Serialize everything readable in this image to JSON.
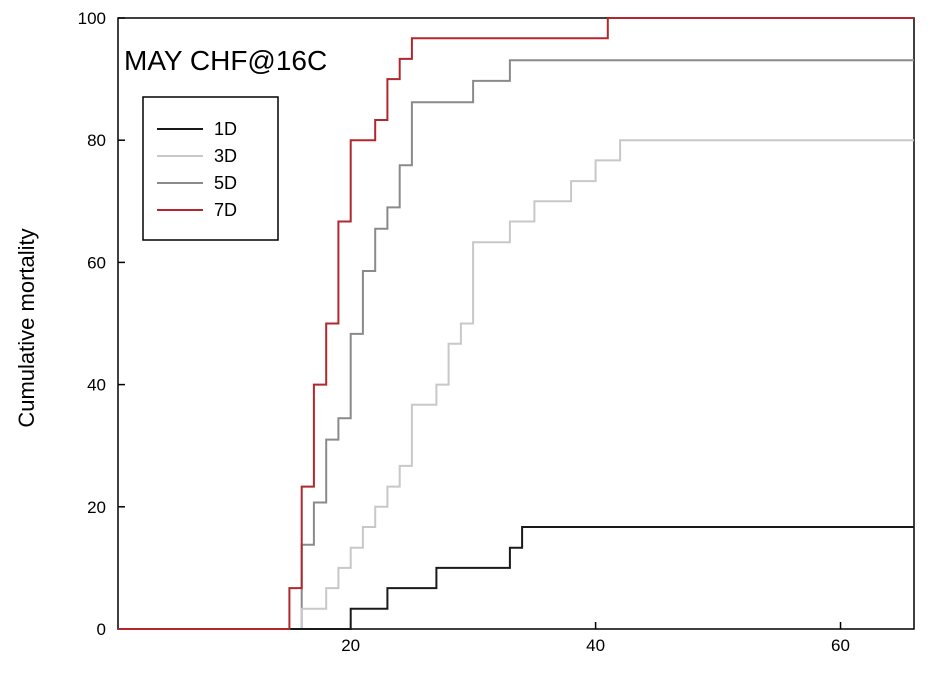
{
  "chart_data": {
    "type": "line",
    "step": true,
    "title": "MAY CHF@16C",
    "xlabel": "",
    "ylabel": "Cumulative mortality",
    "xlim": [
      1,
      66
    ],
    "ylim": [
      0,
      100
    ],
    "xticks": [
      20,
      40,
      60
    ],
    "yticks": [
      0,
      20,
      40,
      60,
      80,
      100
    ],
    "grid": false,
    "legend_position": "upper-left",
    "series": [
      {
        "name": "1D",
        "color": "#1a1a1a",
        "points": [
          [
            1,
            0
          ],
          [
            20,
            0
          ],
          [
            20,
            3.3
          ],
          [
            23,
            3.3
          ],
          [
            23,
            6.7
          ],
          [
            27,
            6.7
          ],
          [
            27,
            10
          ],
          [
            33,
            10
          ],
          [
            33,
            13.3
          ],
          [
            34,
            13.3
          ],
          [
            34,
            16.7
          ],
          [
            66,
            16.7
          ]
        ]
      },
      {
        "name": "3D",
        "color": "#c8c8c8",
        "points": [
          [
            1,
            0
          ],
          [
            16,
            0
          ],
          [
            16,
            3.3
          ],
          [
            18,
            3.3
          ],
          [
            18,
            6.7
          ],
          [
            19,
            6.7
          ],
          [
            19,
            10
          ],
          [
            20,
            10
          ],
          [
            20,
            13.3
          ],
          [
            21,
            13.3
          ],
          [
            21,
            16.7
          ],
          [
            22,
            16.7
          ],
          [
            22,
            20
          ],
          [
            23,
            20
          ],
          [
            23,
            23.3
          ],
          [
            24,
            23.3
          ],
          [
            24,
            26.7
          ],
          [
            25,
            26.7
          ],
          [
            25,
            36.7
          ],
          [
            27,
            36.7
          ],
          [
            27,
            40
          ],
          [
            28,
            40
          ],
          [
            28,
            46.7
          ],
          [
            29,
            46.7
          ],
          [
            29,
            50
          ],
          [
            30,
            50
          ],
          [
            30,
            63.3
          ],
          [
            33,
            63.3
          ],
          [
            33,
            66.7
          ],
          [
            35,
            66.7
          ],
          [
            35,
            70
          ],
          [
            38,
            70
          ],
          [
            38,
            73.3
          ],
          [
            40,
            73.3
          ],
          [
            40,
            76.7
          ],
          [
            42,
            76.7
          ],
          [
            42,
            80
          ],
          [
            66,
            80
          ]
        ]
      },
      {
        "name": "5D",
        "color": "#8a8a8a",
        "points": [
          [
            1,
            0
          ],
          [
            16,
            0
          ],
          [
            16,
            13.8
          ],
          [
            17,
            13.8
          ],
          [
            17,
            20.7
          ],
          [
            18,
            20.7
          ],
          [
            18,
            31
          ],
          [
            19,
            31
          ],
          [
            19,
            34.5
          ],
          [
            20,
            34.5
          ],
          [
            20,
            48.3
          ],
          [
            21,
            48.3
          ],
          [
            21,
            58.6
          ],
          [
            22,
            58.6
          ],
          [
            22,
            65.5
          ],
          [
            23,
            65.5
          ],
          [
            23,
            69
          ],
          [
            24,
            69
          ],
          [
            24,
            75.9
          ],
          [
            25,
            75.9
          ],
          [
            25,
            86.2
          ],
          [
            30,
            86.2
          ],
          [
            30,
            89.7
          ],
          [
            33,
            89.7
          ],
          [
            33,
            93.1
          ],
          [
            66,
            93.1
          ]
        ]
      },
      {
        "name": "7D",
        "color": "#b0282c",
        "points": [
          [
            1,
            0
          ],
          [
            15,
            0
          ],
          [
            15,
            6.7
          ],
          [
            16,
            6.7
          ],
          [
            16,
            23.3
          ],
          [
            17,
            23.3
          ],
          [
            17,
            40
          ],
          [
            18,
            40
          ],
          [
            18,
            50
          ],
          [
            19,
            50
          ],
          [
            19,
            66.7
          ],
          [
            20,
            66.7
          ],
          [
            20,
            80
          ],
          [
            22,
            80
          ],
          [
            22,
            83.3
          ],
          [
            23,
            83.3
          ],
          [
            23,
            90
          ],
          [
            24,
            90
          ],
          [
            24,
            93.3
          ],
          [
            25,
            93.3
          ],
          [
            25,
            96.7
          ],
          [
            41,
            96.7
          ],
          [
            41,
            100
          ],
          [
            66,
            100
          ]
        ]
      }
    ]
  }
}
